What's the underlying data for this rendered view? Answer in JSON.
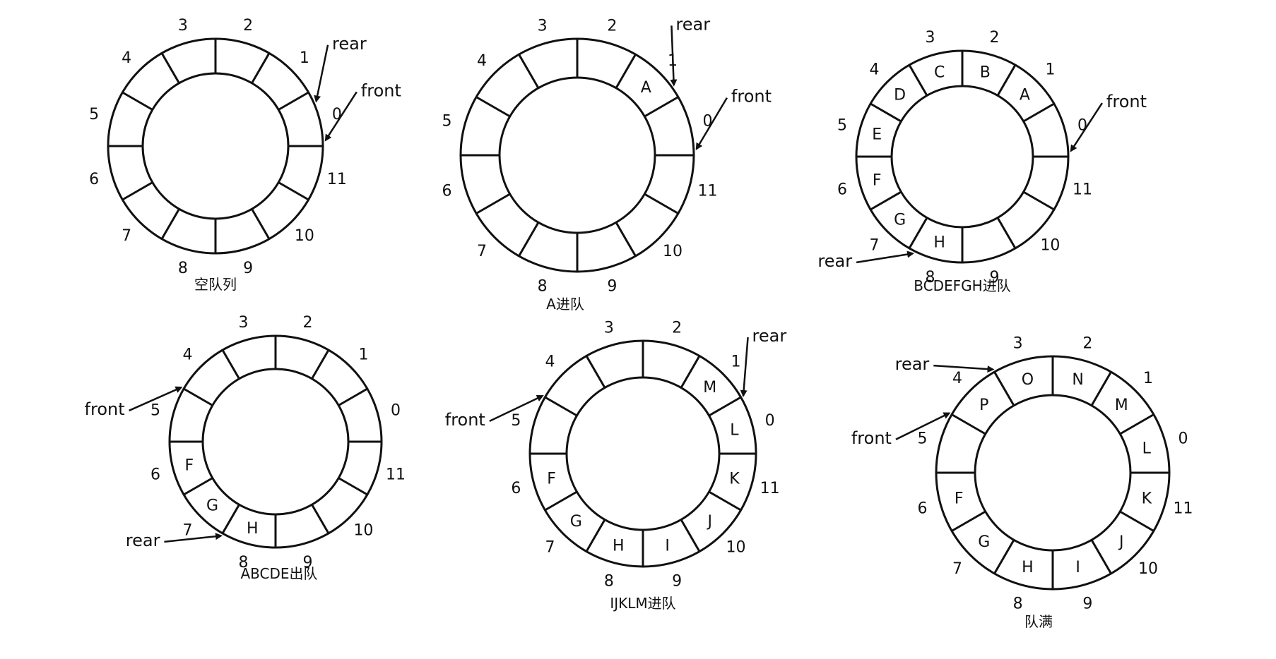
{
  "queues": [
    {
      "caption": "空队列",
      "cells": {},
      "pointers": [
        {
          "label": "rear",
          "slot_edge": 0.8
        },
        {
          "label": "front",
          "slot_edge": 0.1
        }
      ]
    },
    {
      "caption": "A进队",
      "cells": {
        "1": "A"
      },
      "pointers": [
        {
          "label": "rear",
          "slot_edge": 1.2
        },
        {
          "label": "front",
          "slot_edge": 0.1
        }
      ]
    },
    {
      "caption": "BCDEFGH进队",
      "cells": {
        "1": "A",
        "2": "B",
        "3": "C",
        "4": "D",
        "5": "E",
        "6": "F",
        "7": "G",
        "8": "H"
      },
      "pointers": [
        {
          "label": "front",
          "slot_edge": 0.1
        },
        {
          "label": "rear",
          "slot_edge": 8.1
        }
      ]
    },
    {
      "caption": "ABCDE出队",
      "cells": {
        "6": "F",
        "7": "G",
        "8": "H"
      },
      "pointers": [
        {
          "label": "front",
          "slot_edge": 5.0
        },
        {
          "label": "rear",
          "slot_edge": 8.0
        }
      ]
    },
    {
      "caption": "IJKLM进队",
      "cells": {
        "6": "F",
        "7": "G",
        "8": "H",
        "9": "I",
        "10": "J",
        "11": "K",
        "0": "L",
        "1": "M"
      },
      "pointers": [
        {
          "label": "rear",
          "slot_edge": 1.0
        },
        {
          "label": "front",
          "slot_edge": 5.0
        }
      ]
    },
    {
      "caption": "队满",
      "cells": {
        "6": "F",
        "7": "G",
        "8": "H",
        "9": "I",
        "10": "J",
        "11": "K",
        "0": "L",
        "1": "M",
        "2": "N",
        "3": "O",
        "4": "P"
      },
      "pointers": [
        {
          "label": "rear",
          "slot_edge": 4.0
        },
        {
          "label": "front",
          "slot_edge": 5.0
        }
      ]
    }
  ],
  "slot_numbers": [
    "0",
    "1",
    "2",
    "3",
    "4",
    "5",
    "6",
    "7",
    "8",
    "9",
    "10",
    "11"
  ]
}
